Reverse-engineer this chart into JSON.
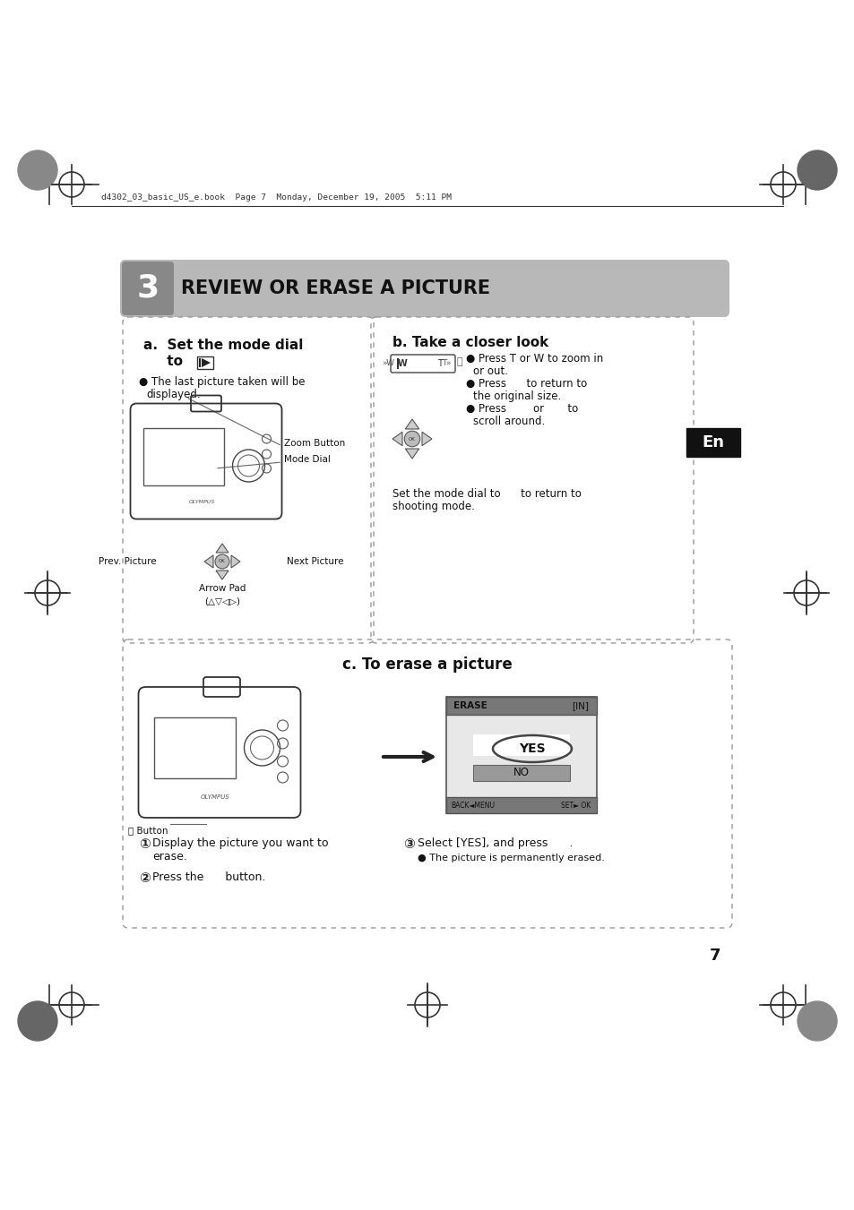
{
  "bg_color": "#ffffff",
  "page_number": "7",
  "header_text": "d4302_03_basic_US_e.book  Page 7  Monday, December 19, 2005  5:11 PM",
  "section_number": "3",
  "section_title": "REVIEW OR ERASE A PICTURE",
  "section_bg": "#b8b8b8",
  "section_num_bg": "#888888",
  "panel_a_title1": "a.  Set the mode dial",
  "panel_a_title2": "     to",
  "panel_a_bullet": "The last picture taken will be\ndisplayed.",
  "panel_a_label1": "Zoom Button",
  "panel_a_label2": "Mode Dial",
  "panel_a_label3": "Prev. Picture",
  "panel_a_label4": "Next Picture",
  "panel_a_label5": "Arrow Pad",
  "panel_a_arrows": "(△▽◁▷)",
  "panel_b_title": "b. Take a closer look",
  "panel_b_bullet1": "Press T or W to zoom in\nor out.",
  "panel_b_bullet2": "to return to\nthe original size.",
  "panel_b_bullet3": "or       to\nscroll around.",
  "panel_b_footer1": "Set the mode dial to      to return to",
  "panel_b_footer2": "shooting mode.",
  "en_label": "En",
  "panel_c_title": "c. To erase a picture",
  "panel_c_step1a": "Display the picture you want to",
  "panel_c_step1b": "erase.",
  "panel_c_step2": "Press the      button.",
  "panel_c_step3": "Select [YES], and press      .",
  "panel_c_bullet": "The picture is permanently erased.",
  "erase_label": "ERASE",
  "erase_in": "[IN]",
  "erase_yes": "YES",
  "erase_no": "NO",
  "back_menu": "BACK◄MENU",
  "set_ok": "SET► OK",
  "button_label": "⛮ Button",
  "dash_color": "#999999",
  "text_color": "#111111",
  "reg_color": "#333333"
}
